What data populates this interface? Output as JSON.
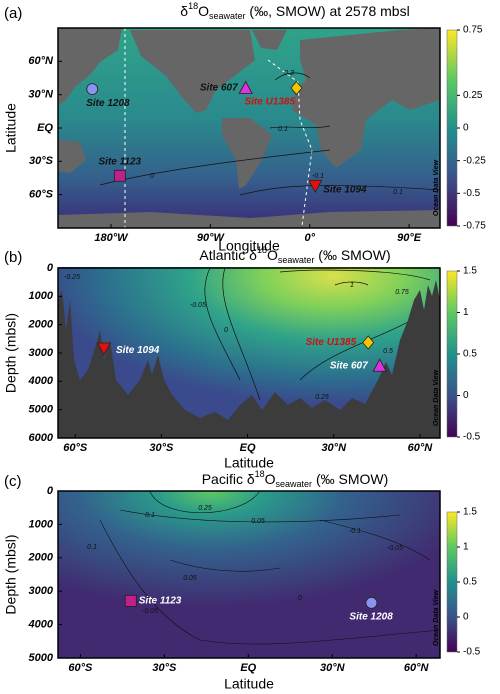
{
  "chart_data": [
    {
      "type": "map",
      "panel_label": "(a)",
      "title": [
        "δ",
        "18",
        "O",
        "seawater",
        " (‰, SMOW) at 2578 mbsl"
      ],
      "x_label": "Longitude",
      "y_label": "Latitude",
      "xlim": [
        -228,
        118
      ],
      "ylim": [
        -90,
        90
      ],
      "xticks": [
        {
          "value": -180,
          "label": "180°W"
        },
        {
          "value": -90,
          "label": "90°W"
        },
        {
          "value": 0,
          "label": "0°"
        },
        {
          "value": 90,
          "label": "90°E"
        }
      ],
      "yticks": [
        {
          "value": 60,
          "label": "60°N"
        },
        {
          "value": 30,
          "label": "30°N"
        },
        {
          "value": 0,
          "label": "EQ"
        },
        {
          "value": -30,
          "label": "30°S"
        },
        {
          "value": -60,
          "label": "60°S"
        }
      ],
      "colorbar": {
        "lim": [
          -0.75,
          0.75
        ],
        "ticks": [
          0.75,
          0.25,
          0,
          -0.25,
          -0.5,
          -0.75
        ]
      },
      "watermark": "Ocean Data View",
      "contour_labels": [
        0.3,
        0.1,
        0,
        -0.1,
        0.1
      ],
      "sites": [
        {
          "name": "Site 1208",
          "marker": "circle",
          "color": "#8a94f0",
          "label_color": "#111111",
          "x": -197,
          "y": 35
        },
        {
          "name": "Site 607",
          "marker": "triangle",
          "color": "#e030e0",
          "label_color": "#111111",
          "x": -58,
          "y": 36
        },
        {
          "name": "Site U1385",
          "marker": "diamond",
          "color": "#f5c400",
          "label_color": "#d01010",
          "x": -12,
          "y": 36
        },
        {
          "name": "Site 1123",
          "marker": "square",
          "color": "#c0208a",
          "label_color": "#111111",
          "x": -172,
          "y": -43
        },
        {
          "name": "Site 1094",
          "marker": "triangle-down",
          "color": "#e01010",
          "label_color": "#111111",
          "x": 5,
          "y": -52
        }
      ]
    },
    {
      "type": "section",
      "panel_label": "(b)",
      "title": [
        "Atlantic δ",
        "18",
        "O",
        "seawater",
        " (‰ SMOW)"
      ],
      "x_label": "Latitude",
      "y_label": "Depth (mbsl)",
      "xlim": [
        -66,
        67
      ],
      "ylim": [
        6000,
        0
      ],
      "xticks": [
        {
          "value": -60,
          "label": "60°S"
        },
        {
          "value": -30,
          "label": "30°S"
        },
        {
          "value": 0,
          "label": "EQ"
        },
        {
          "value": 30,
          "label": "30°N"
        },
        {
          "value": 60,
          "label": "60°N"
        }
      ],
      "yticks": [
        0,
        1000,
        2000,
        3000,
        4000,
        5000,
        6000
      ],
      "colorbar": {
        "lim": [
          -0.5,
          1.5
        ],
        "ticks": [
          1.5,
          1,
          0.5,
          0,
          -0.5
        ]
      },
      "watermark": "Ocean Data View",
      "contour_labels": [
        -0.25,
        1,
        0.75,
        0.5,
        0.25,
        -0.05,
        0
      ],
      "sites": [
        {
          "name": "Site 1094",
          "marker": "triangle-down",
          "color": "#e01010",
          "label_color": "#ffffff",
          "x": -50,
          "y": 2840
        },
        {
          "name": "Site U1385",
          "marker": "diamond",
          "color": "#f5c400",
          "label_color": "#d01010",
          "x": 42,
          "y": 2630
        },
        {
          "name": "Site 607",
          "marker": "triangle",
          "color": "#e030e0",
          "label_color": "#ffffff",
          "x": 46,
          "y": 3450
        }
      ]
    },
    {
      "type": "section",
      "panel_label": "(c)",
      "title": [
        "Pacific δ",
        "18",
        "O",
        "seawater",
        " (‰ SMOW)"
      ],
      "x_label": "Latitude",
      "y_label": "Depth (mbsl)",
      "xlim": [
        -68,
        68.5
      ],
      "ylim": [
        5000,
        0
      ],
      "xticks": [
        {
          "value": -60,
          "label": "60°S"
        },
        {
          "value": -30,
          "label": "30°S"
        },
        {
          "value": 0,
          "label": "EQ"
        },
        {
          "value": 30,
          "label": "30°N"
        },
        {
          "value": 60,
          "label": "60°N"
        }
      ],
      "yticks": [
        0,
        1000,
        2000,
        3000,
        4000,
        5000
      ],
      "colorbar": {
        "lim": [
          -0.5,
          1.5
        ],
        "ticks": [
          1.5,
          1,
          0.5,
          0,
          -0.5
        ]
      },
      "watermark": "Ocean Data View",
      "contour_labels": [
        0.25,
        0.1,
        0.05,
        -0.1,
        -0.05,
        0.1,
        0.05,
        0,
        -0.05
      ],
      "sites": [
        {
          "name": "Site 1123",
          "marker": "square",
          "color": "#c0208a",
          "label_color": "#ffffff",
          "x": -42,
          "y": 3290
        },
        {
          "name": "Site 1208",
          "marker": "circle",
          "color": "#8a94f0",
          "label_color": "#ffffff",
          "x": 44,
          "y": 3350
        }
      ]
    }
  ]
}
